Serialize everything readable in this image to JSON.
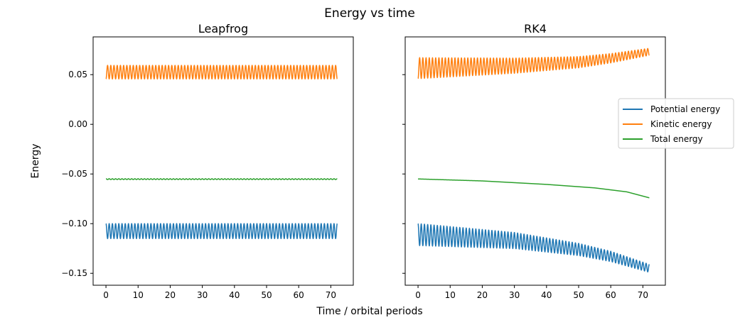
{
  "figure": {
    "title": "Energy vs time",
    "xlabel": "Time / orbital periods",
    "ylabel": "Energy"
  },
  "colors": {
    "potential": "#1f77b4",
    "kinetic": "#ff7f0e",
    "total": "#2ca02c"
  },
  "chart_data": [
    {
      "type": "line",
      "title": "Leapfrog",
      "xlabel": "Time / orbital periods",
      "ylabel": "Energy",
      "xlim": [
        -4,
        77
      ],
      "ylim": [
        -0.162,
        0.088
      ],
      "xticks": [
        0,
        10,
        20,
        30,
        40,
        50,
        60,
        70
      ],
      "yticks": [
        0.05,
        0.0,
        -0.05,
        -0.1,
        -0.15
      ],
      "ytick_labels": [
        "0.05",
        "0.00",
        "−0.05",
        "−0.10",
        "−0.15"
      ],
      "cycles": 72,
      "x_range": [
        0,
        72
      ],
      "series": [
        {
          "key": "potential",
          "center": [
            -0.1075,
            -0.1075
          ],
          "amplitude": [
            0.0075,
            0.0075
          ]
        },
        {
          "key": "kinetic",
          "center": [
            0.0525,
            0.0525
          ],
          "amplitude": [
            0.0068,
            0.0068
          ]
        },
        {
          "key": "total",
          "center": [
            -0.0552,
            -0.0552
          ],
          "amplitude": [
            0.0004,
            0.0004
          ]
        }
      ]
    },
    {
      "type": "line",
      "title": "RK4",
      "xlabel": "Time / orbital periods",
      "xlim": [
        -4,
        77
      ],
      "ylim": [
        -0.162,
        0.088
      ],
      "xticks": [
        0,
        10,
        20,
        30,
        40,
        50,
        60,
        70
      ],
      "yticks": [
        0.05,
        0.0,
        -0.05,
        -0.1,
        -0.15
      ],
      "cycles": 72,
      "x_range": [
        0,
        72
      ],
      "series": [
        {
          "key": "potential",
          "center_points": [
            [
              0,
              -0.111
            ],
            [
              30,
              -0.117
            ],
            [
              50,
              -0.126
            ],
            [
              60,
              -0.133
            ],
            [
              72,
              -0.145
            ]
          ],
          "amplitude": [
            0.011,
            0.004
          ]
        },
        {
          "key": "kinetic",
          "center_points": [
            [
              0,
              0.0565
            ],
            [
              30,
              0.059
            ],
            [
              50,
              0.0625
            ],
            [
              60,
              0.0665
            ],
            [
              72,
              0.073
            ]
          ],
          "amplitude": [
            0.0105,
            0.0035
          ]
        },
        {
          "key": "total",
          "center_points": [
            [
              0,
              -0.055
            ],
            [
              20,
              -0.057
            ],
            [
              40,
              -0.0605
            ],
            [
              55,
              -0.064
            ],
            [
              65,
              -0.068
            ],
            [
              72,
              -0.074
            ]
          ],
          "amplitude": [
            0,
            0
          ]
        }
      ]
    }
  ],
  "legend": {
    "placement": "right",
    "entries": [
      {
        "key": "potential",
        "label": "Potential energy"
      },
      {
        "key": "kinetic",
        "label": "Kinetic energy"
      },
      {
        "key": "total",
        "label": "Total energy"
      }
    ]
  }
}
